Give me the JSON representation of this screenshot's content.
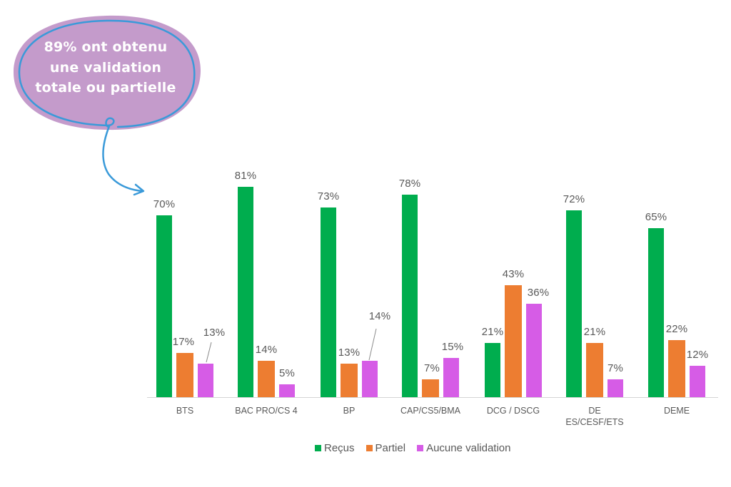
{
  "callout": {
    "lines": [
      "89% ont obtenu",
      "une validation",
      "totale ou partielle"
    ],
    "fill_color": "#C49BCB",
    "stroke_color": "#3A9AD9"
  },
  "legend": {
    "items": [
      {
        "label": "Reçus",
        "color": "#00AD4E"
      },
      {
        "label": "Partiel",
        "color": "#ED7D31"
      },
      {
        "label": "Aucune validation",
        "color": "#D65CE6"
      }
    ]
  },
  "chart_data": {
    "type": "bar",
    "title": "",
    "xlabel": "",
    "ylabel": "",
    "ylim": [
      0,
      100
    ],
    "grid": false,
    "legend_position": "bottom",
    "categories": [
      "BTS",
      "BAC PRO/CS 4",
      "BP",
      "CAP/CS5/BMA",
      "DCG / DSCG",
      "DE ES/CESF/ETS",
      "DEME"
    ],
    "category_lines": [
      [
        "BTS"
      ],
      [
        "BAC PRO/CS 4"
      ],
      [
        "BP"
      ],
      [
        "CAP/CS5/BMA"
      ],
      [
        "DCG / DSCG"
      ],
      [
        "DE",
        "ES/CESF/ETS"
      ],
      [
        "DEME"
      ]
    ],
    "series": [
      {
        "name": "Reçus",
        "color": "#00AD4E",
        "values": [
          70,
          81,
          73,
          78,
          21,
          72,
          65
        ]
      },
      {
        "name": "Partiel",
        "color": "#ED7D31",
        "values": [
          17,
          14,
          13,
          7,
          43,
          21,
          22
        ]
      },
      {
        "name": "Aucune validation",
        "color": "#D65CE6",
        "values": [
          13,
          5,
          14,
          15,
          36,
          7,
          12
        ]
      }
    ],
    "value_suffix": "%",
    "annotation": "89% ont obtenu une validation totale ou partielle"
  }
}
